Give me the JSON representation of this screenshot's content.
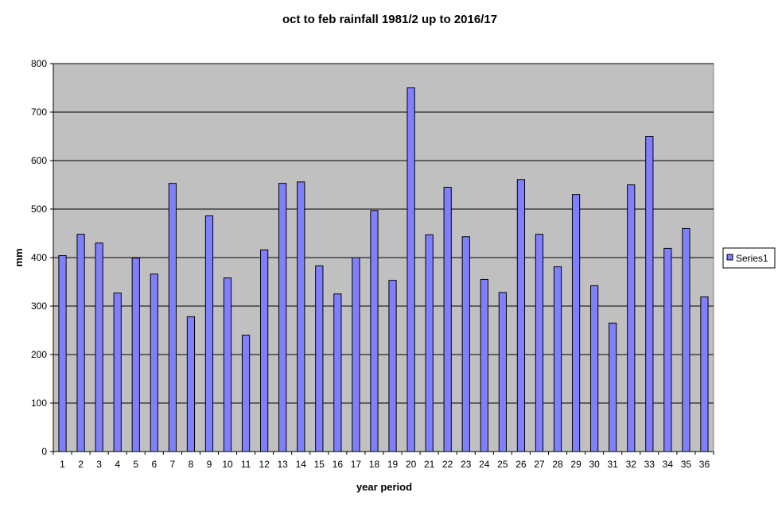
{
  "chart_data": {
    "type": "bar",
    "title": "oct to feb rainfall 1981/2 up to 2016/17",
    "xlabel": "year period",
    "ylabel": "mm",
    "ylim": [
      0,
      800
    ],
    "yticks": [
      "0",
      "100",
      "200",
      "300",
      "400",
      "500",
      "600",
      "700",
      "800"
    ],
    "categories": [
      "1",
      "2",
      "3",
      "4",
      "5",
      "6",
      "7",
      "8",
      "9",
      "10",
      "11",
      "12",
      "13",
      "14",
      "15",
      "16",
      "17",
      "18",
      "19",
      "20",
      "21",
      "22",
      "23",
      "24",
      "25",
      "26",
      "27",
      "28",
      "29",
      "30",
      "31",
      "32",
      "33",
      "34",
      "35",
      "36"
    ],
    "series": [
      {
        "name": "Series1",
        "values": [
          404,
          448,
          430,
          327,
          399,
          366,
          553,
          278,
          486,
          358,
          240,
          416,
          553,
          556,
          383,
          325,
          400,
          497,
          353,
          750,
          447,
          545,
          443,
          355,
          328,
          561,
          448,
          381,
          530,
          342,
          265,
          550,
          650,
          419,
          460,
          319
        ]
      }
    ],
    "grid": true,
    "legend": "right",
    "colors": {
      "bar_fill": "#8080ff",
      "bar_stroke": "#000000",
      "plot_background": "#c0c0c0",
      "gridline": "#000000"
    }
  }
}
